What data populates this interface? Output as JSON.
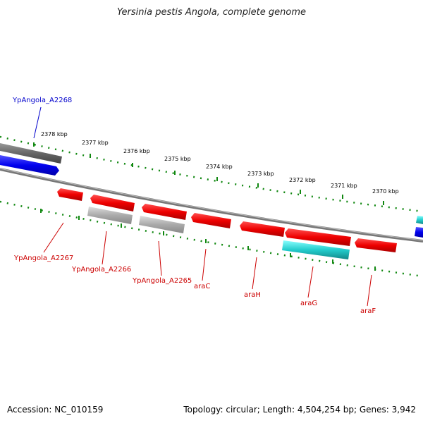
{
  "title": "Yersinia pestis Angola, complete genome",
  "footer": {
    "accession": "Accession: NC_010159",
    "summary": "Topology: circular; Length: 4,504,254 bp; Genes: 3,942"
  },
  "colors": {
    "forward_gene": "#0000ee",
    "reverse_gene": "#ee0000",
    "gray_feature": "#aaaaaa",
    "cyan_feature": "#22cccc",
    "backbone": "#777777",
    "tick": "#118811",
    "label_blue": "#0000cc",
    "label_red": "#cc0000"
  },
  "ticks": [
    "2378 kbp",
    "2377 kbp",
    "2376 kbp",
    "2375 kbp",
    "2374 kbp",
    "2373 kbp",
    "2372 kbp",
    "2371 kbp",
    "2370 kbp"
  ],
  "gene_labels": {
    "a2268": "YpAngola_A2268",
    "a2267": "YpAngola_A2267",
    "a2266": "YpAngola_A2266",
    "a2265": "YpAngola_A2265",
    "araC": "araC",
    "araH": "araH",
    "araG": "araG",
    "araF": "araF"
  }
}
